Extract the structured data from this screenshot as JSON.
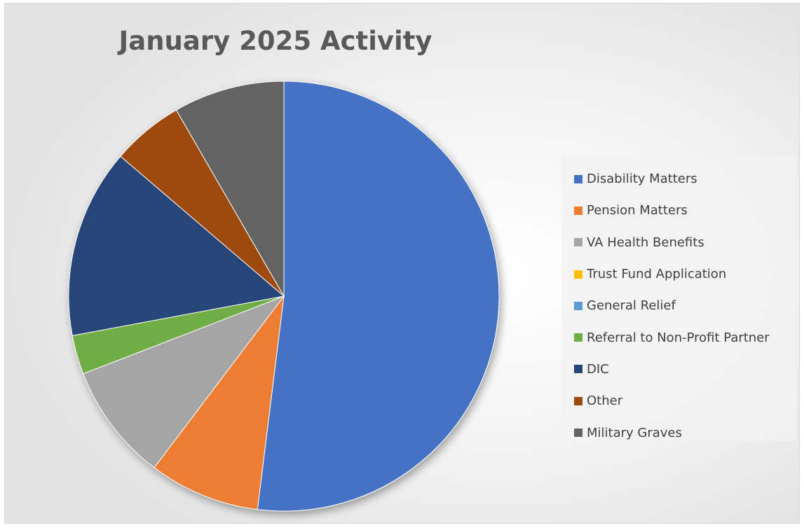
{
  "chart_data": {
    "type": "pie",
    "title": "January 2025 Activity",
    "legend_position": "right",
    "slices": [
      {
        "label": "Disability Matters",
        "value": 53,
        "color": "#4472C4"
      },
      {
        "label": "Pension Matters",
        "value": 8.5,
        "color": "#ED7D31"
      },
      {
        "label": "VA Health Benefits",
        "value": 9,
        "color": "#A5A5A5"
      },
      {
        "label": "Trust Fund Application",
        "value": 0,
        "color": "#FFC000"
      },
      {
        "label": "General Relief",
        "value": 0,
        "color": "#5B9BD5"
      },
      {
        "label": "Referral to Non-Profit Partner",
        "value": 3,
        "color": "#70AD47"
      },
      {
        "label": "DIC",
        "value": 14.5,
        "color": "#264478"
      },
      {
        "label": "Other",
        "value": 5.5,
        "color": "#9E480E"
      },
      {
        "label": "Military Graves",
        "value": 8.5,
        "color": "#636363"
      }
    ]
  }
}
